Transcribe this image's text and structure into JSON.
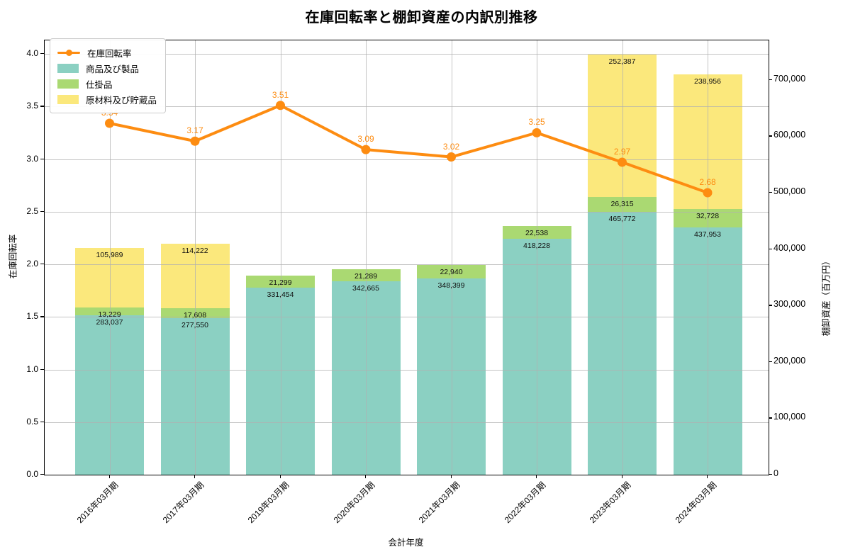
{
  "title": "在庫回転率と棚卸資産の内訳別推移",
  "axes": {
    "x_title": "会計年度",
    "y_left_title": "在庫回転率",
    "y_right_title": "棚卸資産（百万円）",
    "y_left_ticks": {
      "values": [
        0,
        0.5,
        1.0,
        1.5,
        2.0,
        2.5,
        3.0,
        3.5,
        4.0
      ],
      "labels": [
        "0.0",
        "0.5",
        "1.0",
        "1.5",
        "2.0",
        "2.5",
        "3.0",
        "3.5",
        "4.0"
      ]
    },
    "y_right_ticks": {
      "values": [
        0,
        100000,
        200000,
        300000,
        400000,
        500000,
        600000,
        700000
      ],
      "labels": [
        "0",
        "100,000",
        "200,000",
        "300,000",
        "400,000",
        "500,000",
        "600,000",
        "700,000"
      ]
    }
  },
  "colors": {
    "grid": "#b0b0b0",
    "axis": "#000000"
  },
  "chart_data": {
    "type": "combo-stacked-bar-line",
    "title": "在庫回転率と棚卸資産の内訳別推移",
    "xlabel": "会計年度",
    "y_left_label": "在庫回転率",
    "y_right_label": "棚卸資産（百万円）",
    "y_left_range": [
      0,
      4.13
    ],
    "y_right_range": [
      0,
      770000
    ],
    "grid": true,
    "legend_position": "upper left",
    "categories": [
      "2016年03月期",
      "2017年03月期",
      "2019年03月期",
      "2020年03月期",
      "2021年03月期",
      "2022年03月期",
      "2023年03月期",
      "2024年03月期"
    ],
    "bar_series": [
      {
        "key": "products",
        "name": "商品及び製品",
        "color": "#8bd0c2",
        "values": [
          283037,
          277550,
          331454,
          342665,
          348399,
          418228,
          465772,
          437953
        ]
      },
      {
        "key": "wip",
        "name": "仕掛品",
        "color": "#aad972",
        "values": [
          13229,
          17608,
          21299,
          21289,
          22940,
          22538,
          26315,
          32728
        ]
      },
      {
        "key": "raw",
        "name": "原材料及び貯蔵品",
        "color": "#fbe87c",
        "values": [
          105989,
          114222,
          0,
          0,
          0,
          0,
          252387,
          238956
        ]
      }
    ],
    "line_series": {
      "key": "turnover",
      "name": "在庫回転率",
      "color": "#fd8c11",
      "values": [
        3.34,
        3.17,
        3.51,
        3.09,
        3.02,
        3.25,
        2.97,
        2.68
      ]
    },
    "bar_value_label_format": "thousands-comma",
    "line_value_label_format": "2-decimals"
  }
}
